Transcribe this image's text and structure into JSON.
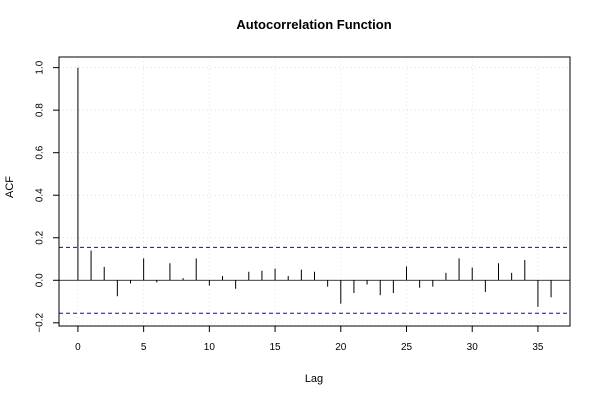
{
  "chart_data": {
    "type": "bar",
    "title": "Autocorrelation Function",
    "xlabel": "Lag",
    "ylabel": "ACF",
    "xlim": [
      -1.44,
      37.44
    ],
    "ylim": [
      -0.215,
      1.05
    ],
    "x_ticks": [
      0,
      5,
      10,
      15,
      20,
      25,
      30,
      35
    ],
    "y_ticks": [
      -0.2,
      0.0,
      0.2,
      0.4,
      0.6,
      0.8,
      1.0
    ],
    "y_tick_labels": [
      "−0.2",
      "0.0",
      "0.2",
      "0.4",
      "0.6",
      "0.8",
      "1.0"
    ],
    "grid": true,
    "confidence_bounds": [
      0.155,
      -0.155
    ],
    "confidence_color": "#0000ff",
    "lags": [
      0,
      1,
      2,
      3,
      4,
      5,
      6,
      7,
      8,
      9,
      10,
      11,
      12,
      13,
      14,
      15,
      16,
      17,
      18,
      19,
      20,
      21,
      22,
      23,
      24,
      25,
      26,
      27,
      28,
      29,
      30,
      31,
      32,
      33,
      34,
      35,
      36
    ],
    "values": [
      1.0,
      0.14,
      0.063,
      -0.075,
      -0.015,
      0.103,
      -0.01,
      0.08,
      0.01,
      0.103,
      -0.025,
      0.02,
      -0.04,
      0.04,
      0.045,
      0.055,
      0.02,
      0.05,
      0.04,
      -0.03,
      -0.11,
      -0.06,
      -0.02,
      -0.07,
      -0.06,
      0.065,
      -0.035,
      -0.03,
      0.035,
      0.103,
      0.06,
      -0.055,
      0.08,
      0.035,
      0.095,
      -0.125,
      -0.08
    ]
  }
}
